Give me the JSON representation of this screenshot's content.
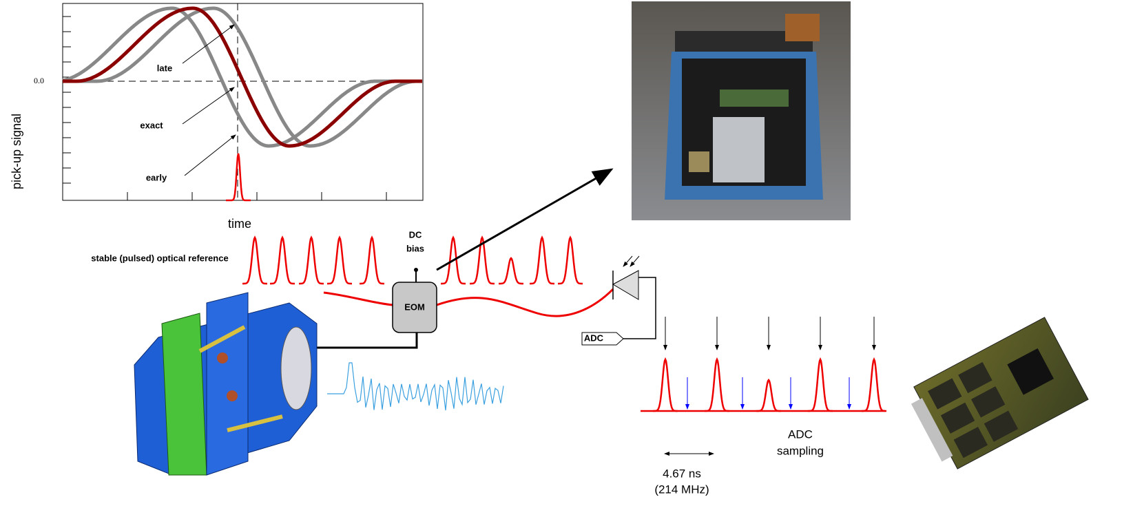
{
  "plot": {
    "y_label": "pick-up signal",
    "x_label": "time",
    "zero_label": "0.0",
    "annotations": [
      "late",
      "exact",
      "early"
    ]
  },
  "reference_label": "stable (pulsed) optical reference",
  "dc_bias": [
    "DC",
    "bias"
  ],
  "eom_label": "EOM",
  "adc_label": "ADC",
  "period": [
    "4.67 ns",
    "(214 MHz)"
  ],
  "sampling": [
    "ADC",
    "sampling"
  ]
}
